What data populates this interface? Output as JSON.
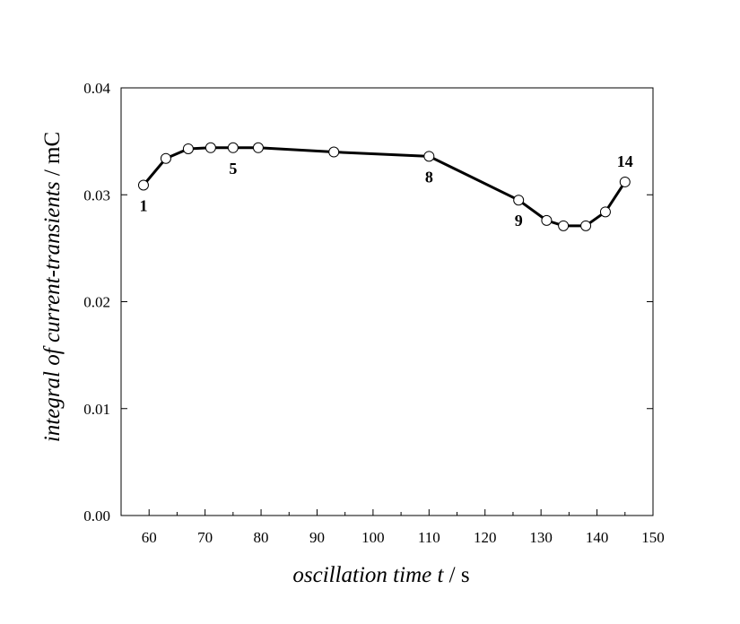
{
  "chart_data": {
    "type": "line",
    "title": "",
    "xlabel": {
      "italic": "oscillation time t",
      "normal": " / s"
    },
    "ylabel": {
      "italic": "integral of current-transients",
      "normal": " / mC"
    },
    "xlim": [
      55,
      150
    ],
    "ylim": [
      0.0,
      0.04
    ],
    "xticks": [
      60,
      70,
      80,
      90,
      100,
      110,
      120,
      130,
      140,
      150
    ],
    "xtick_labels": [
      "60",
      "70",
      "80",
      "90",
      "100",
      "110",
      "120",
      "130",
      "140",
      "150"
    ],
    "yticks": [
      0.0,
      0.01,
      0.02,
      0.03,
      0.04
    ],
    "ytick_labels": [
      "0.00",
      "0.01",
      "0.02",
      "0.03",
      "0.04"
    ],
    "grid": false,
    "series": [
      {
        "x": [
          59,
          63,
          67,
          71,
          75,
          79.5,
          93,
          110,
          126,
          131,
          134,
          138,
          141.5,
          145
        ],
        "y": [
          0.0309,
          0.0334,
          0.0343,
          0.0344,
          0.0344,
          0.0344,
          0.034,
          0.0336,
          0.0295,
          0.0276,
          0.0271,
          0.0271,
          0.0284,
          0.0312
        ]
      }
    ],
    "annotations": [
      {
        "text": "1",
        "point_index": 0,
        "position": "below"
      },
      {
        "text": "5",
        "point_index": 4,
        "position": "below"
      },
      {
        "text": "8",
        "point_index": 7,
        "position": "below"
      },
      {
        "text": "9",
        "point_index": 8,
        "position": "below"
      },
      {
        "text": "14",
        "point_index": 13,
        "position": "above"
      }
    ]
  }
}
